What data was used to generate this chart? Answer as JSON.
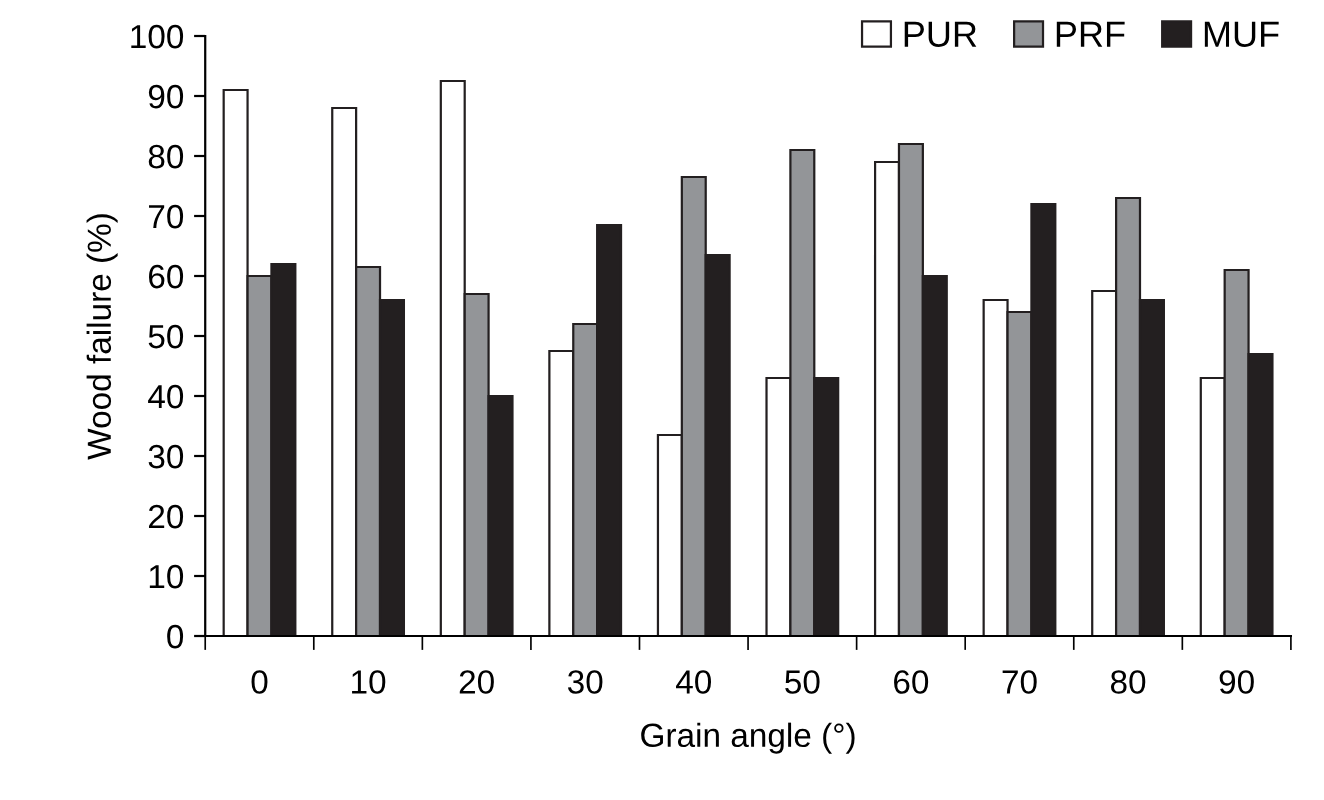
{
  "chart_data": {
    "type": "bar",
    "xlabel": "Grain angle (°)",
    "ylabel": "Wood failure (%)",
    "categories": [
      "0",
      "10",
      "20",
      "30",
      "40",
      "50",
      "60",
      "70",
      "80",
      "90"
    ],
    "series": [
      {
        "name": "PUR",
        "color": "#ffffff",
        "values": [
          91,
          88,
          92.5,
          47.5,
          33.5,
          43,
          79,
          56,
          57.5,
          43
        ]
      },
      {
        "name": "PRF",
        "color": "#939598",
        "values": [
          60,
          61.5,
          57,
          52,
          76.5,
          81,
          82,
          54,
          73,
          61
        ]
      },
      {
        "name": "MUF",
        "color": "#231f20",
        "values": [
          62,
          56,
          40,
          68.5,
          63.5,
          43,
          60,
          72,
          56,
          47
        ]
      }
    ],
    "ylim": [
      0,
      100
    ],
    "yticks": [
      0,
      10,
      20,
      30,
      40,
      50,
      60,
      70,
      80,
      90,
      100
    ],
    "grid": false,
    "legend": "top right"
  }
}
